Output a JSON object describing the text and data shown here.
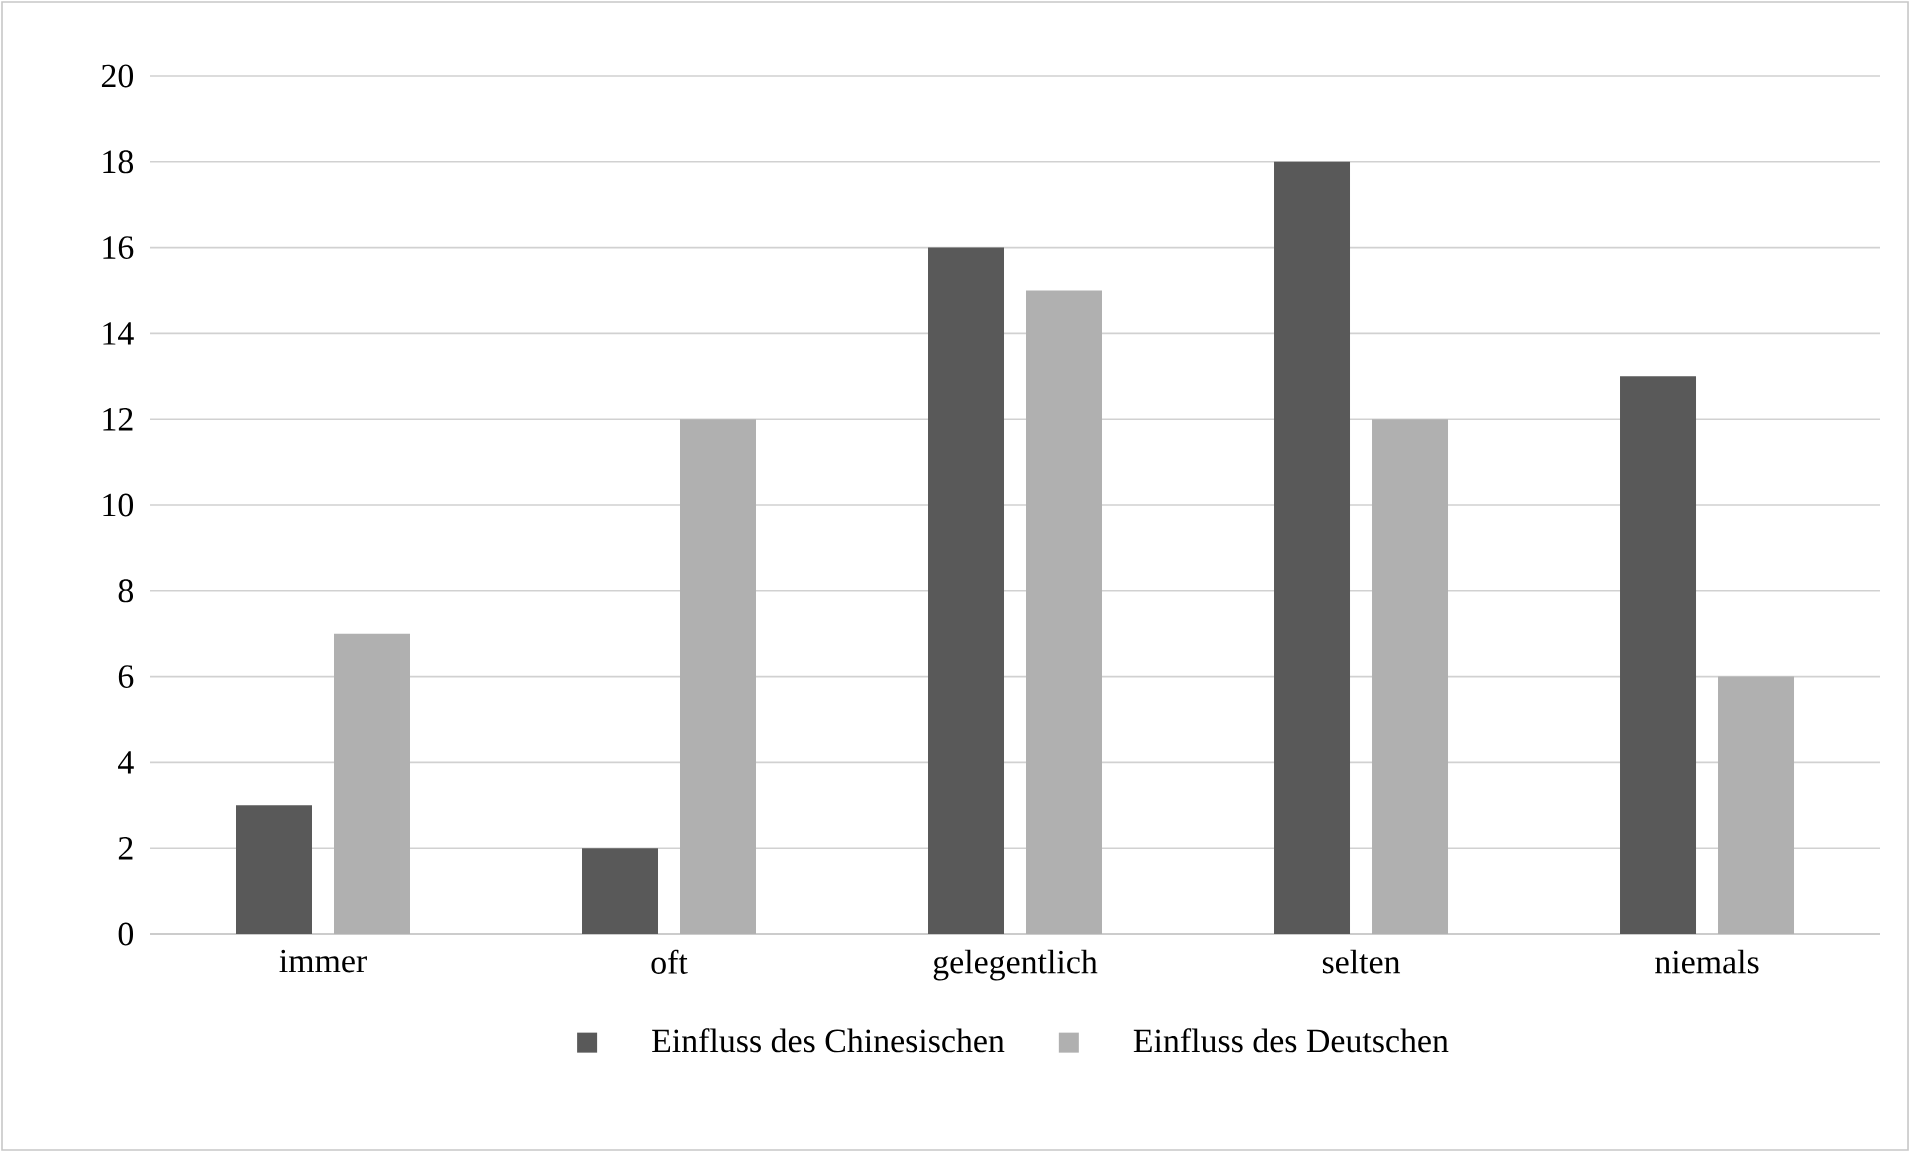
{
  "chart_data": {
    "type": "bar",
    "categories": [
      "immer",
      "oft",
      "gelegentlich",
      "selten",
      "niemals"
    ],
    "series": [
      {
        "name": "Einfluss des Chinesischen",
        "color": "#595959",
        "values": [
          3,
          2,
          16,
          18,
          13
        ]
      },
      {
        "name": "Einfluss des Deutschen",
        "color": "#b0b0b0",
        "values": [
          7,
          12,
          15,
          12,
          6
        ]
      }
    ],
    "ylim": [
      0,
      20
    ],
    "yticks": [
      0,
      2,
      4,
      6,
      8,
      10,
      12,
      14,
      16,
      18,
      20
    ],
    "grid": "y",
    "legend": "bottom"
  }
}
